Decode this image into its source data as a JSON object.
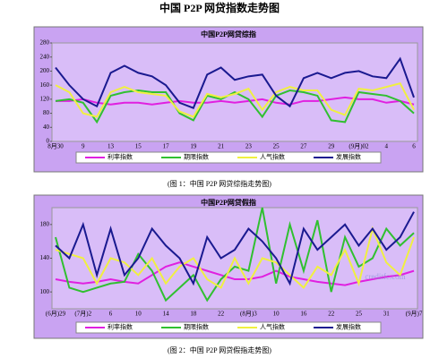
{
  "title": "中国 P2P 网贷指数走势图",
  "captions": [
    "(图 1：中国 P2P 网贷综指走势图)",
    "(图 2：中国 P2P 网贷假指走势图)"
  ],
  "watermark": "creditfc.com",
  "chart_data": [
    {
      "type": "line",
      "title": "中国P2P网贷综指",
      "categories": [
        "8月30",
        null,
        "9",
        null,
        "13",
        null,
        "15",
        null,
        "17",
        null,
        "19",
        null,
        "21",
        null,
        "23",
        null,
        "25",
        null,
        "27",
        null,
        "29",
        null,
        "(9月)02",
        null,
        "4",
        null,
        "6"
      ],
      "ylim": [
        0,
        280
      ],
      "yticks": [
        0,
        40,
        80,
        120,
        160,
        200,
        240,
        280
      ],
      "grid": false,
      "series": [
        {
          "name": "利率指数",
          "color": "#e020e0",
          "values": [
            115,
            115,
            120,
            110,
            105,
            110,
            110,
            105,
            110,
            115,
            110,
            110,
            115,
            110,
            115,
            120,
            110,
            105,
            115,
            115,
            120,
            125,
            120,
            120,
            110,
            115,
            105
          ]
        },
        {
          "name": "期限指数",
          "color": "#30c030",
          "values": [
            115,
            120,
            110,
            55,
            130,
            140,
            145,
            140,
            140,
            80,
            60,
            130,
            120,
            140,
            120,
            70,
            130,
            145,
            140,
            130,
            60,
            55,
            140,
            135,
            130,
            115,
            80
          ]
        },
        {
          "name": "人气指数",
          "color": "#f0f040",
          "values": [
            160,
            140,
            80,
            70,
            140,
            155,
            140,
            135,
            130,
            85,
            70,
            135,
            125,
            135,
            150,
            90,
            140,
            155,
            145,
            145,
            90,
            75,
            150,
            145,
            155,
            165,
            90
          ]
        },
        {
          "name": "发展指数",
          "color": "#1a1a90",
          "values": [
            210,
            160,
            120,
            100,
            195,
            215,
            195,
            185,
            160,
            110,
            95,
            190,
            210,
            175,
            185,
            190,
            130,
            100,
            180,
            195,
            180,
            195,
            200,
            185,
            180,
            235,
            125
          ]
        }
      ]
    },
    {
      "type": "line",
      "title": "中国P2P网贷假指",
      "categories": [
        "(6月)29",
        null,
        "(7月)2",
        null,
        "6",
        null,
        "10",
        null,
        "14",
        null,
        "18",
        null,
        "22",
        null,
        "(8月)3",
        null,
        "10",
        null,
        "16",
        null,
        "22",
        null,
        "25",
        null,
        "31",
        null,
        "(9月)7"
      ],
      "ylim": [
        80,
        200
      ],
      "yticks": [
        100,
        140,
        180
      ],
      "grid": false,
      "series": [
        {
          "name": "利率指数",
          "color": "#e020e0",
          "values": [
            115,
            112,
            110,
            112,
            115,
            112,
            110,
            120,
            130,
            135,
            130,
            125,
            120,
            115,
            115,
            118,
            125,
            118,
            115,
            112,
            110,
            108,
            112,
            115,
            118,
            120,
            125
          ]
        },
        {
          "name": "期限指数",
          "color": "#30c030",
          "values": [
            165,
            105,
            100,
            105,
            110,
            112,
            145,
            125,
            90,
            105,
            120,
            90,
            115,
            130,
            125,
            200,
            110,
            180,
            125,
            185,
            100,
            165,
            130,
            140,
            175,
            155,
            170
          ]
        },
        {
          "name": "人气指数",
          "color": "#f0f040",
          "values": [
            150,
            145,
            140,
            110,
            140,
            135,
            120,
            140,
            110,
            130,
            140,
            115,
            105,
            140,
            110,
            140,
            135,
            120,
            105,
            130,
            120,
            150,
            110,
            175,
            135,
            120,
            165
          ]
        },
        {
          "name": "发展指数",
          "color": "#1a1a90",
          "values": [
            155,
            140,
            180,
            120,
            175,
            120,
            140,
            175,
            155,
            140,
            110,
            165,
            140,
            150,
            175,
            160,
            140,
            110,
            175,
            150,
            165,
            180,
            155,
            175,
            150,
            165,
            195
          ]
        }
      ]
    }
  ]
}
